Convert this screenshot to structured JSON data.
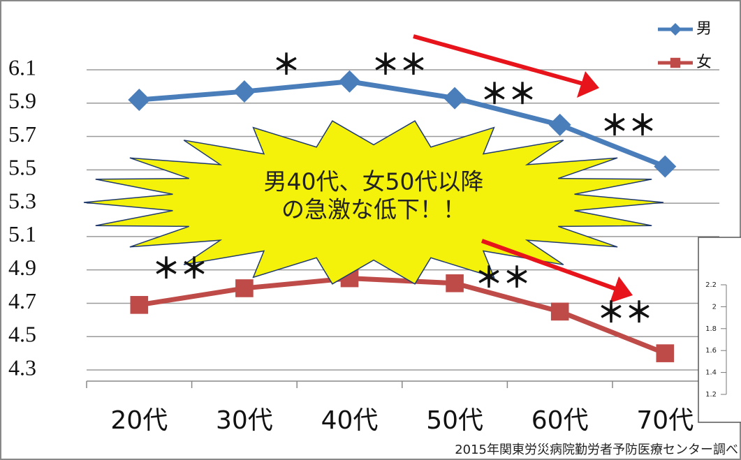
{
  "chart_data": {
    "type": "line",
    "categories": [
      "20代",
      "30代",
      "40代",
      "50代",
      "60代",
      "70代"
    ],
    "series": [
      {
        "name": "男",
        "color": "#4a7ebb",
        "marker": "diamond",
        "values": [
          5.92,
          5.97,
          6.03,
          5.93,
          5.77,
          5.52
        ]
      },
      {
        "name": "女",
        "color": "#be4b48",
        "marker": "square",
        "values": [
          4.69,
          4.79,
          4.85,
          4.82,
          4.65,
          4.4
        ]
      }
    ],
    "ylim": [
      4.3,
      6.1
    ],
    "yticks": [
      4.3,
      4.5,
      4.7,
      4.9,
      5.1,
      5.3,
      5.5,
      5.7,
      5.9,
      6.1
    ],
    "grid": true,
    "legend": "top-right",
    "annotations": [
      "＊",
      "＊＊",
      "＊＊",
      "＊＊",
      "＊＊",
      "＊＊",
      "＊＊"
    ],
    "callout": [
      "男40代、女50代以降",
      "の急激な低下！！"
    ],
    "source": "2015年関東労災病院勤労者予防医療センター調べ",
    "inset": {
      "ylim": [
        1.2,
        2.2
      ],
      "yticks": [
        1.2,
        1.4,
        1.6,
        1.8,
        2,
        2.2
      ]
    }
  }
}
